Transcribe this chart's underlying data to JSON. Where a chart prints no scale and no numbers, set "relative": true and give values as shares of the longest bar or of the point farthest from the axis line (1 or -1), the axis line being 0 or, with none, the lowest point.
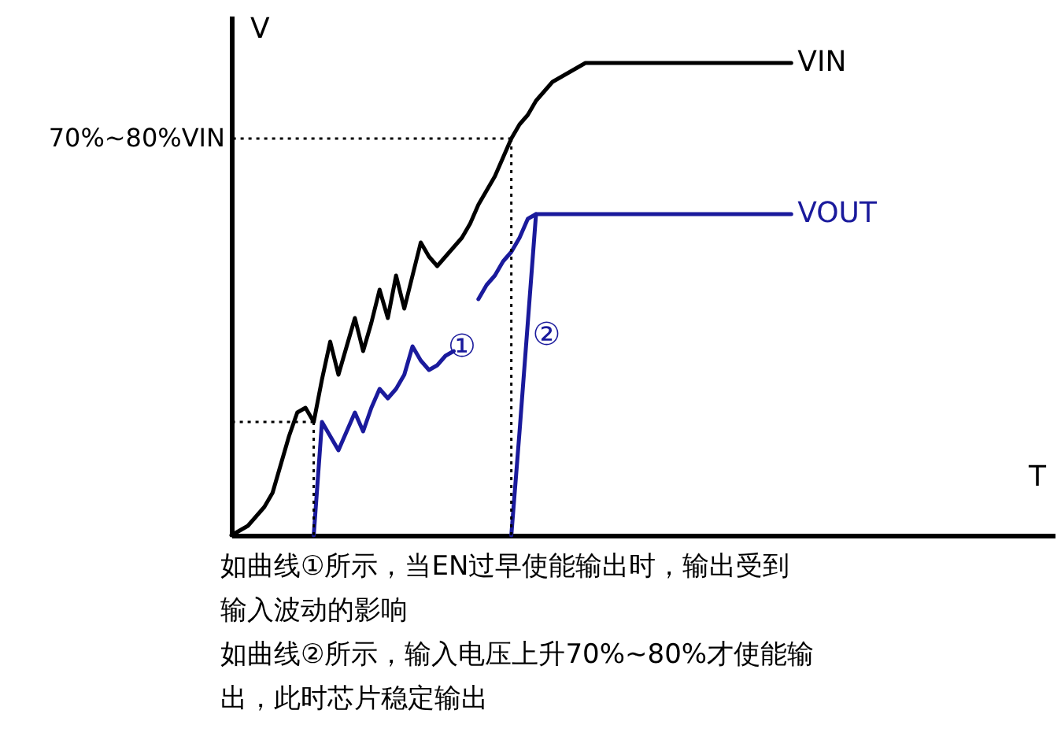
{
  "chart_data": {
    "type": "line",
    "relative": true,
    "xlabel": "T",
    "ylabel": "V",
    "grid": false,
    "legend": false,
    "marker": "none",
    "line_style": "solid",
    "categories": [
      null,
      null,
      null,
      null,
      null,
      null,
      null,
      null,
      null,
      null,
      null,
      null,
      null,
      null,
      null,
      null,
      null,
      null,
      null,
      null,
      null,
      null,
      null,
      null,
      null,
      null,
      null,
      null,
      null,
      null,
      null,
      null,
      null,
      null,
      null,
      null,
      null,
      null,
      null,
      null,
      null,
      null,
      null,
      null,
      null,
      null,
      null,
      null,
      null,
      null,
      null,
      null,
      null,
      null,
      null,
      null,
      null,
      null,
      null,
      null,
      null,
      null,
      null,
      null,
      null,
      null,
      null,
      null,
      null,
      null,
      null,
      null,
      null,
      null,
      null,
      null,
      null,
      null,
      null,
      null,
      null,
      null,
      null,
      null,
      null,
      null,
      null,
      null,
      null,
      null,
      null,
      null,
      null,
      null,
      null,
      null,
      null,
      null,
      null,
      null,
      null
    ],
    "series": [
      {
        "name": "VIN",
        "color": "#000000",
        "values": [
          0,
          0.01,
          0.02,
          0.04,
          0.06,
          0.09,
          0.15,
          0.21,
          0.26,
          0.27,
          0.24,
          0.33,
          0.41,
          0.34,
          0.4,
          0.46,
          0.39,
          0.45,
          0.52,
          0.46,
          0.55,
          0.48,
          0.55,
          0.62,
          0.59,
          0.57,
          0.59,
          0.61,
          0.63,
          0.66,
          0.7,
          0.73,
          0.76,
          0.8,
          0.84,
          0.87,
          0.89,
          0.92,
          0.94,
          0.96,
          0.97,
          0.98,
          0.99,
          1,
          1,
          1,
          1,
          1,
          1,
          1,
          1,
          1,
          1,
          1,
          1,
          1,
          1,
          1,
          1,
          1,
          1,
          1,
          1,
          1,
          1,
          1,
          1,
          1,
          1,
          null,
          null,
          null,
          null,
          null,
          null,
          null,
          null,
          null,
          null,
          null,
          null,
          null,
          null,
          null,
          null,
          null,
          null,
          null,
          null,
          null,
          null,
          null,
          null,
          null,
          null,
          null,
          null,
          null,
          null,
          null,
          null
        ]
      },
      {
        "name": "VOUT",
        "color": "#1a1a9c",
        "values": [
          null,
          null,
          null,
          null,
          null,
          null,
          null,
          null,
          null,
          null,
          0,
          0.24,
          0.21,
          0.18,
          0.22,
          0.26,
          0.22,
          0.27,
          0.31,
          0.29,
          0.31,
          0.34,
          0.4,
          0.37,
          0.35,
          0.36,
          0.38,
          0.39,
          null,
          null,
          0.5,
          0.53,
          0.55,
          0.58,
          0.6,
          0.63,
          0.67,
          0.68,
          0.68,
          0.68,
          0.68,
          0.68,
          0.68,
          0.68,
          0.68,
          0.68,
          0.68,
          0.68,
          0.68,
          0.68,
          0.68,
          0.68,
          0.68,
          0.68,
          0.68,
          0.68,
          0.68,
          0.68,
          0.68,
          0.68,
          0.68,
          0.68,
          0.68,
          0.68,
          0.68,
          0.68,
          0.68,
          0.68,
          0.68,
          null,
          null,
          null,
          null,
          null,
          null,
          null,
          null,
          null,
          null,
          null,
          null,
          null,
          null,
          null,
          null,
          null,
          null,
          null,
          null,
          null,
          null,
          null,
          null,
          null,
          null,
          null,
          null,
          null,
          null,
          null,
          null
        ]
      },
      {
        "color": "#1a1a9c",
        "values": [
          null,
          null,
          null,
          null,
          null,
          null,
          null,
          null,
          null,
          null,
          null,
          null,
          null,
          null,
          null,
          null,
          null,
          null,
          null,
          null,
          null,
          null,
          null,
          null,
          null,
          null,
          null,
          null,
          null,
          null,
          null,
          null,
          null,
          null,
          0,
          0.22,
          0.45,
          0.68,
          null,
          null,
          null,
          null,
          null,
          null,
          null,
          null,
          null,
          null,
          null,
          null,
          null,
          null,
          null,
          null,
          null,
          null,
          null,
          null,
          null,
          null,
          null,
          null,
          null,
          null,
          null,
          null,
          null,
          null,
          null,
          null,
          null,
          null,
          null,
          null,
          null,
          null,
          null,
          null,
          null,
          null,
          null,
          null,
          null,
          null,
          null,
          null,
          null,
          null,
          null,
          null,
          null,
          null,
          null,
          null,
          null,
          null,
          null,
          null,
          null,
          null,
          null
        ]
      }
    ],
    "ref_lines": [
      {
        "axis": "y",
        "value": 0.84,
        "label": "70%~80%VIN",
        "line_style": "dotted",
        "color": "#000000"
      },
      {
        "axis": "y",
        "value": 0.24,
        "line_style": "dotted",
        "color": "#000000"
      }
    ],
    "annotations": [
      "①",
      "②",
      "如曲线①所示，当EN过早使能输出时，输出受到输入波动的影响",
      "如曲线②所示，输入电压上升70%~80%才使能输出，此时芯片稳定输出"
    ]
  }
}
